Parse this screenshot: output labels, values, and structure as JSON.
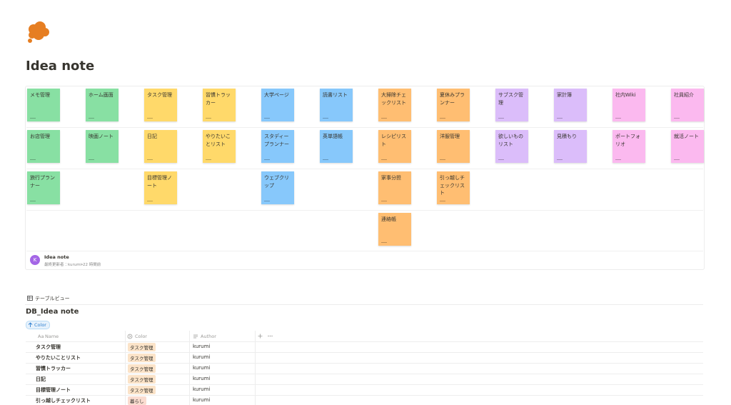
{
  "page": {
    "title": "Idea note"
  },
  "board": {
    "columns": [
      {
        "color": "#88e0a3",
        "cards": [
          "メモ管理",
          "お店管理",
          "旅行プランナー"
        ]
      },
      {
        "color": "#88e0a3",
        "cards": [
          "ホーム画面",
          "映画ノート"
        ]
      },
      {
        "color": "#ffd96a",
        "cards": [
          "タスク管理",
          "日記",
          "目標管理ノート"
        ]
      },
      {
        "color": "#ffd96a",
        "cards": [
          "習慣トラッカー",
          "やりたいことリスト"
        ]
      },
      {
        "color": "#87c8fb",
        "cards": [
          "大学ページ",
          "スタディープランナー",
          "ウェブクリップ"
        ]
      },
      {
        "color": "#87c8fb",
        "cards": [
          "読書リスト",
          "英単語帳"
        ]
      },
      {
        "color": "#ffbe72",
        "cards": [
          "大掃除チェックリスト",
          "レシピリスト",
          "家事分担",
          "連絡帳"
        ]
      },
      {
        "color": "#ffbe72",
        "cards": [
          "夏休みプランナー",
          "洋服管理",
          "引っ越しチェックリスト"
        ]
      },
      {
        "color": "#dbbdfa",
        "cards": [
          "サブスク管理",
          "欲しいものリスト"
        ]
      },
      {
        "color": "#dbbdfa",
        "cards": [
          "家計簿",
          "見積もり"
        ]
      },
      {
        "color": "#fbb9ef",
        "cards": [
          "社内Wiki",
          "ポートフォリオ"
        ]
      },
      {
        "color": "#fbb9ef",
        "cards": [
          "社員紹介",
          "就活ノート"
        ]
      }
    ],
    "footer": {
      "avatar": "K",
      "name": "Idea note",
      "meta": "最終更新者：kurumi・22 時間前"
    }
  },
  "table_view": {
    "tab": "テーブルビュー",
    "title": "DB_Idea note",
    "filter": "Color",
    "headers": [
      {
        "icon": "Aa",
        "label": "Name"
      },
      {
        "label": "Color"
      },
      {
        "label": "Author"
      }
    ],
    "rows": [
      {
        "name": "タスク管理",
        "color": "タスク管理",
        "tag_color": "#fbe3c8",
        "author": "kurumi"
      },
      {
        "name": "やりたいことリスト",
        "color": "タスク管理",
        "tag_color": "#fbe3c8",
        "author": "kurumi"
      },
      {
        "name": "習慣トラッカー",
        "color": "タスク管理",
        "tag_color": "#fbe3c8",
        "author": "kurumi"
      },
      {
        "name": "日記",
        "color": "タスク管理",
        "tag_color": "#fbe3c8",
        "author": "kurumi"
      },
      {
        "name": "目標管理ノート",
        "color": "タスク管理",
        "tag_color": "#fbe3c8",
        "author": "kurumi"
      },
      {
        "name": "引っ越しチェックリスト",
        "color": "暮らし",
        "tag_color": "#fadcd0",
        "author": "kurumi"
      }
    ]
  }
}
